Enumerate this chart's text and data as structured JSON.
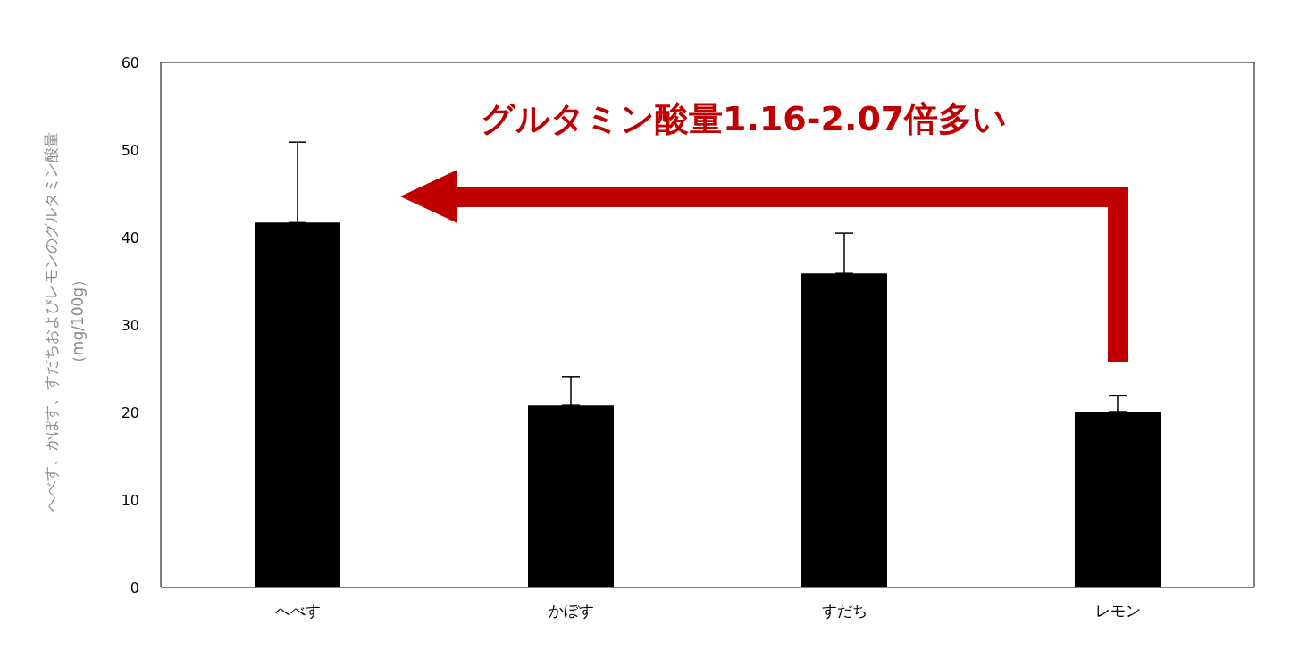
{
  "chart_data": {
    "type": "bar",
    "categories": [
      "へべす",
      "かぼす",
      "すだち",
      "レモン"
    ],
    "values": [
      41.7,
      20.8,
      35.9,
      20.1
    ],
    "errors": [
      [
        41.7,
        50.9
      ],
      [
        20.8,
        24.1
      ],
      [
        35.9,
        40.5
      ],
      [
        20.1,
        21.9
      ]
    ],
    "color": "#000000",
    "ylabel": "へべす、かぼす、すだちおよびレモンのグルタミン酸量（mg/100g）",
    "ylim": [
      0,
      60
    ],
    "yticks": [
      0,
      10,
      20,
      30,
      40,
      50,
      60
    ],
    "annotations": [
      "グルタミン酸量1.16-2.07倍多い"
    ],
    "grid": false,
    "legend": false
  }
}
